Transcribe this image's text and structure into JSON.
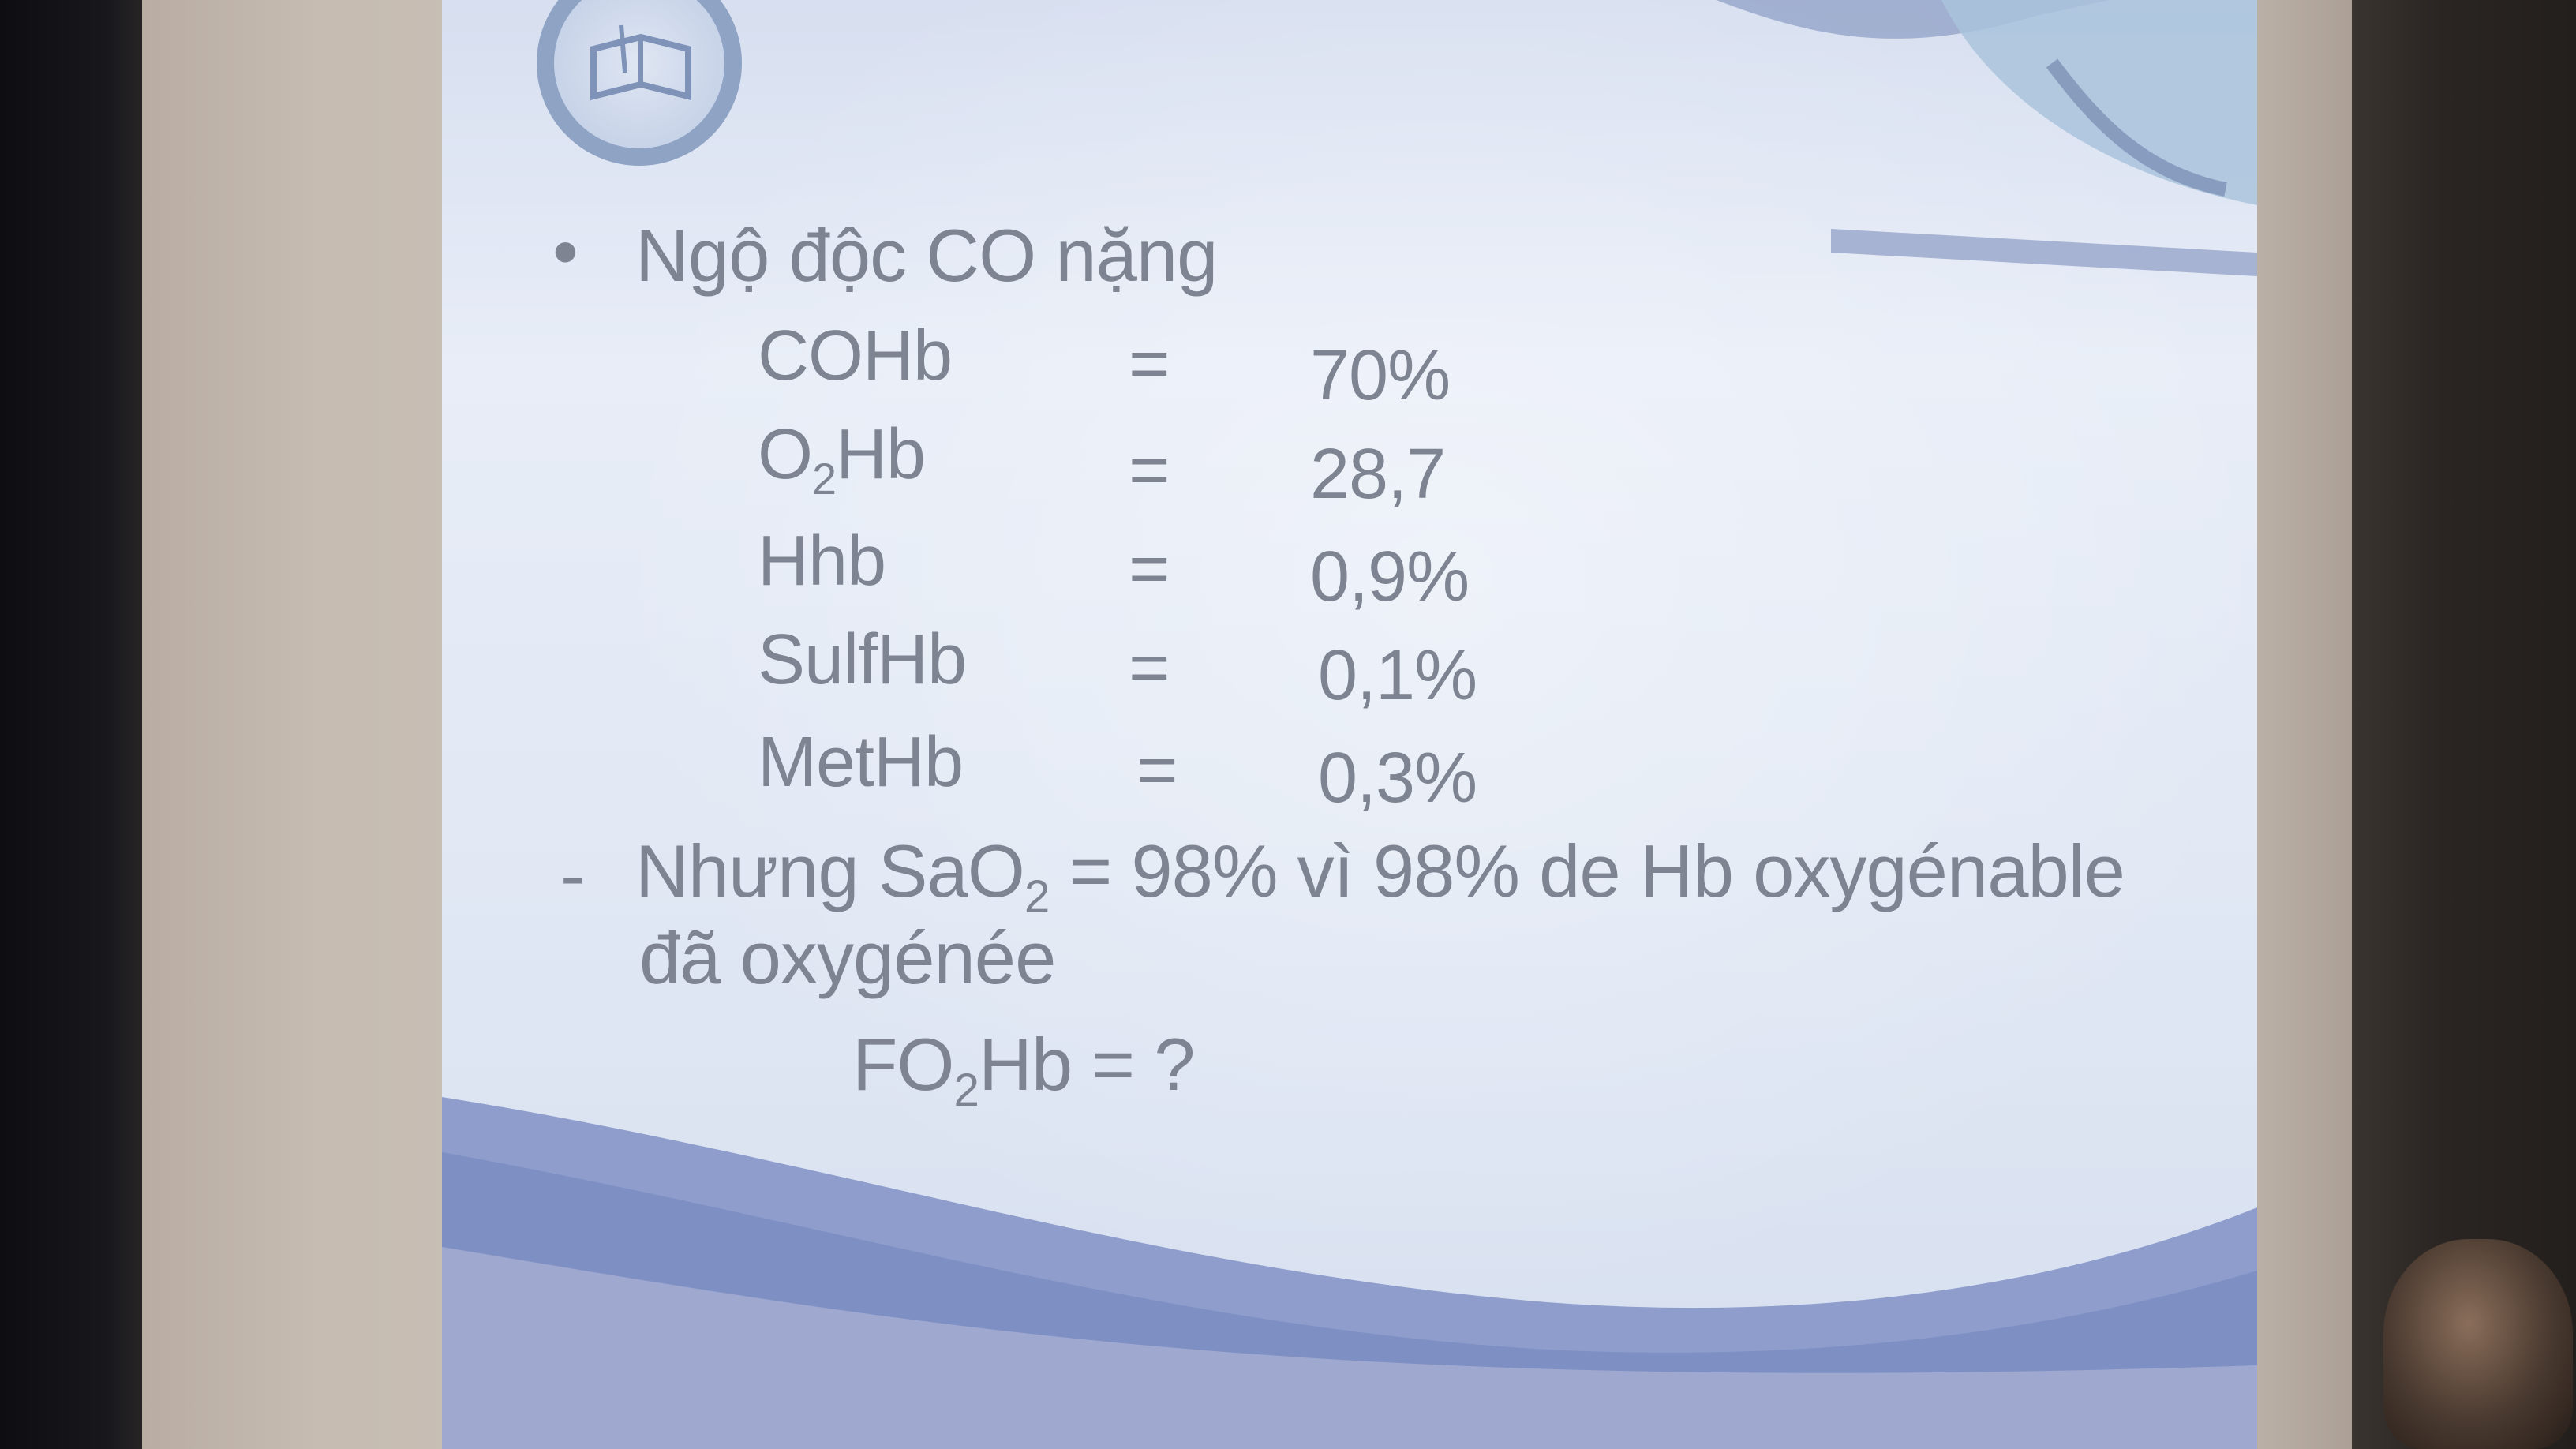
{
  "slide": {
    "heading": "Ngộ độc CO nặng",
    "bullet": "•",
    "rows": [
      {
        "name_main": "COHb",
        "name_sub": "",
        "name_tail": "",
        "eq": "=",
        "value": "70%"
      },
      {
        "name_main": "O",
        "name_sub": "2",
        "name_tail": "Hb",
        "eq": "=",
        "value": "28,7"
      },
      {
        "name_main": "Hhb",
        "name_sub": "",
        "name_tail": "",
        "eq": "=",
        "value": "0,9%"
      },
      {
        "name_main": "SulfHb",
        "name_sub": "",
        "name_tail": "",
        "eq": "=",
        "value": "0,1%"
      },
      {
        "name_main": "MetHb",
        "name_sub": "",
        "name_tail": "",
        "eq": "=",
        "value": "0,3%"
      }
    ],
    "note": {
      "dash": "-",
      "line1_pre": "Nhưng SaO",
      "line1_sub": "2",
      "line1_post": " = 98% vì 98% de Hb oxygénable",
      "line2": "đã oxygénée"
    },
    "question": {
      "pre": "FO",
      "sub": "2",
      "post": "Hb = ?"
    }
  },
  "colors": {
    "slide_text": "#7f8492",
    "slide_bg": "#e8edf7",
    "accent": "#7d8fc0"
  },
  "icons": [
    "university-seal-logo",
    "decorative-illustration"
  ]
}
